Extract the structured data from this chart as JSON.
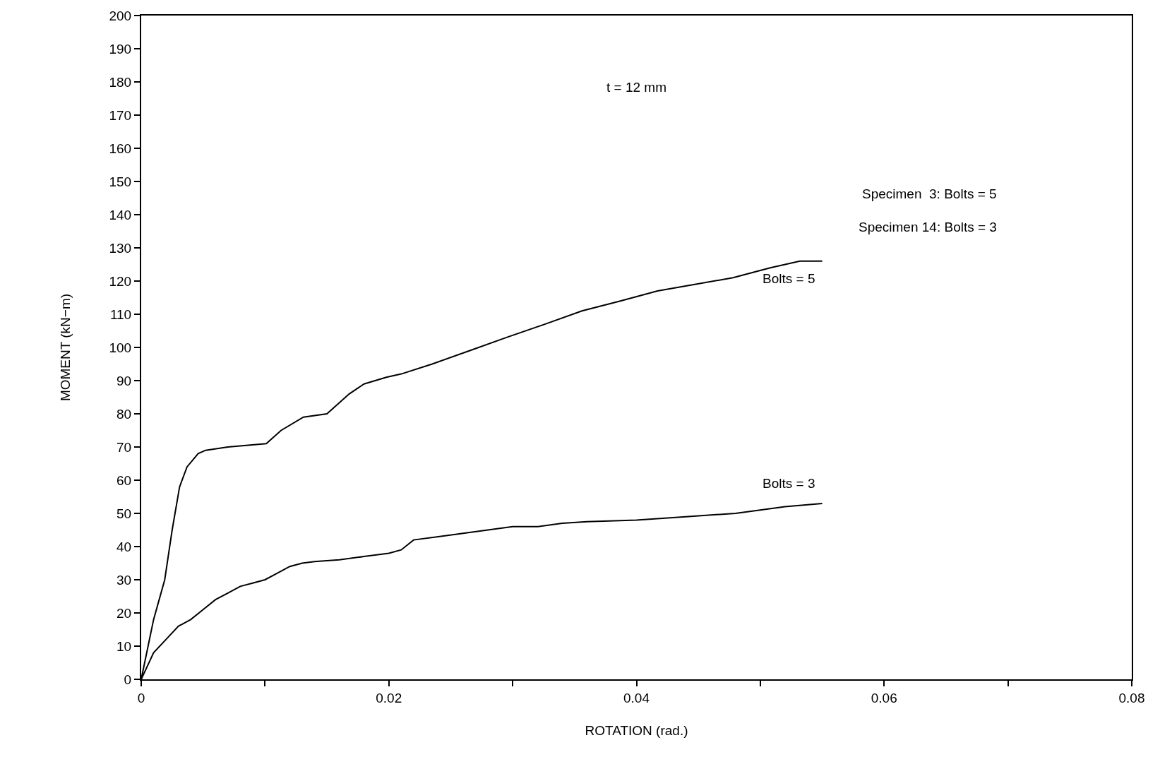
{
  "chart_data": {
    "type": "line",
    "xlabel": "ROTATION (rad.)",
    "ylabel": "MOMENT (kN−m)",
    "annotations": [
      "t = 12 mm",
      "Specimen  3: Bolts = 5",
      "Specimen 14: Bolts = 3"
    ],
    "series": [
      {
        "name": "Bolts = 5",
        "color": "#000000",
        "x": [
          0,
          0.001,
          0.0019,
          0.0025,
          0.0031,
          0.0037,
          0.0046,
          0.0052,
          0.007,
          0.0101,
          0.0113,
          0.0131,
          0.015,
          0.0168,
          0.018,
          0.0198,
          0.021,
          0.0235,
          0.0265,
          0.0295,
          0.0326,
          0.0356,
          0.0387,
          0.0417,
          0.0447,
          0.0478,
          0.0508,
          0.0532,
          0.055
        ],
        "values": [
          0,
          18,
          30,
          45,
          58,
          64,
          68,
          69,
          70,
          71,
          75,
          79,
          80,
          86,
          89,
          91,
          92,
          95,
          99,
          103,
          107,
          111,
          114,
          117,
          119,
          121,
          124,
          126,
          126
        ]
      },
      {
        "name": "Bolts = 3",
        "color": "#000000",
        "x": [
          0,
          0.001,
          0.002,
          0.003,
          0.004,
          0.005,
          0.006,
          0.007,
          0.008,
          0.009,
          0.01,
          0.011,
          0.012,
          0.013,
          0.014,
          0.016,
          0.018,
          0.02,
          0.021,
          0.022,
          0.024,
          0.026,
          0.028,
          0.03,
          0.032,
          0.034,
          0.036,
          0.04,
          0.044,
          0.048,
          0.05,
          0.052,
          0.055
        ],
        "values": [
          0,
          8,
          12,
          16,
          18,
          21,
          24,
          26,
          28,
          29,
          30,
          32,
          34,
          35,
          35.5,
          36,
          37,
          38,
          39,
          42,
          43,
          44,
          45,
          46,
          46,
          47,
          47.5,
          48,
          49,
          50,
          51,
          52,
          53
        ]
      }
    ],
    "xlim": [
      0,
      0.08
    ],
    "ylim": [
      0,
      200
    ],
    "xticks": [
      0,
      {
        "value": 0.01,
        "label": null
      },
      0.02,
      {
        "value": 0.03,
        "label": null
      },
      0.04,
      {
        "value": 0.05,
        "label": null
      },
      0.06,
      {
        "value": 0.07,
        "label": null
      },
      0.08
    ],
    "yticks": [
      0,
      10,
      20,
      30,
      40,
      50,
      60,
      70,
      80,
      90,
      100,
      110,
      120,
      130,
      140,
      150,
      160,
      170,
      180,
      190,
      200
    ],
    "legend": false,
    "marker": "none",
    "line_style": "solid"
  }
}
